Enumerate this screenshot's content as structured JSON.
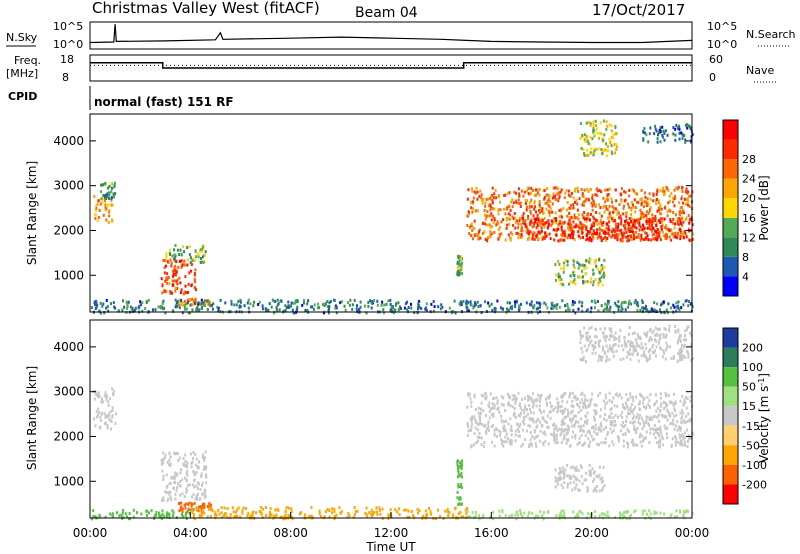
{
  "header": {
    "title": "Christmas Valley West (fitACF)",
    "beam": "Beam 04",
    "date": "17/Oct/2017"
  },
  "noise_panel": {
    "left_label": "N.Sky",
    "right_label": "N.Search",
    "left_ticks": [
      "10^5",
      "10^0"
    ],
    "right_ticks": [
      "10^5",
      "10^0"
    ]
  },
  "freq_panel": {
    "left_label_line1": "Freq.",
    "left_label_line2": "[MHz]",
    "right_label": "Nave",
    "left_ticks": [
      "18",
      "8"
    ],
    "right_ticks": [
      "60",
      "0"
    ]
  },
  "cpid_panel": {
    "label": "CPID",
    "text": "normal (fast) 151 RF"
  },
  "chart_data": [
    {
      "type": "line",
      "name": "noise",
      "x_range_hours": [
        0,
        24
      ],
      "series": [
        {
          "name": "N.Sky",
          "points": [
            [
              0,
              1.2
            ],
            [
              0.95,
              1.3
            ],
            [
              1.0,
              4.6
            ],
            [
              1.05,
              1.4
            ],
            [
              3,
              1.5
            ],
            [
              5,
              1.7
            ],
            [
              5.2,
              3.0
            ],
            [
              5.3,
              1.8
            ],
            [
              8,
              2.0
            ],
            [
              10,
              2.2
            ],
            [
              12,
              2.0
            ],
            [
              14,
              1.8
            ],
            [
              15,
              1.6
            ],
            [
              16,
              1.4
            ],
            [
              18,
              1.3
            ],
            [
              20,
              1.2
            ],
            [
              22,
              1.2
            ],
            [
              24,
              1.6
            ]
          ]
        }
      ]
    },
    {
      "type": "line",
      "name": "frequency",
      "x_range_hours": [
        0,
        24
      ],
      "series": [
        {
          "name": "Freq. [MHz]",
          "points": [
            [
              0,
              15
            ],
            [
              2.9,
              15
            ],
            [
              2.9,
              13
            ],
            [
              14.9,
              13
            ],
            [
              14.9,
              15
            ],
            [
              24,
              15
            ]
          ]
        },
        {
          "name": "Nave",
          "points": [
            [
              0,
              12
            ],
            [
              24,
              12
            ]
          ]
        }
      ]
    },
    {
      "type": "heatmap",
      "name": "power",
      "xlabel": "",
      "ylabel": "Slant Range [km]",
      "xlim_hours": [
        0,
        24
      ],
      "ylim": [
        180,
        4600
      ],
      "y_ticks": [
        1000,
        2000,
        3000,
        4000
      ],
      "colorbar": {
        "label": "Power [dB]",
        "ticks": [
          "4",
          "8",
          "12",
          "16",
          "20",
          "24",
          "28"
        ],
        "colors": [
          "#0000ff",
          "#1e58b4",
          "#2e8b57",
          "#55aa55",
          "#ffd700",
          "#ffa500",
          "#ff6600",
          "#ff2a00",
          "#ff0000"
        ]
      },
      "regions": [
        {
          "t0": 0.1,
          "t1": 0.9,
          "r0": 2200,
          "r1": 2800,
          "value": 20
        },
        {
          "t0": 0.4,
          "t1": 1.0,
          "r0": 2700,
          "r1": 3100,
          "value": 10
        },
        {
          "t0": 2.8,
          "t1": 4.2,
          "r0": 600,
          "r1": 1400,
          "value": 26
        },
        {
          "t0": 3.0,
          "t1": 4.6,
          "r0": 1300,
          "r1": 1700,
          "value": 12
        },
        {
          "t0": 3.5,
          "t1": 4.8,
          "r0": 350,
          "r1": 500,
          "value": 22
        },
        {
          "t0": 15.0,
          "t1": 24.0,
          "r0": 1800,
          "r1": 3000,
          "value": 23
        },
        {
          "t0": 17.0,
          "t1": 24.0,
          "r0": 1800,
          "r1": 2300,
          "value": 28
        },
        {
          "t0": 18.5,
          "t1": 20.5,
          "r0": 800,
          "r1": 1400,
          "value": 14
        },
        {
          "t0": 19.5,
          "t1": 21.0,
          "r0": 3700,
          "r1": 4500,
          "value": 16
        },
        {
          "t0": 22.0,
          "t1": 24.0,
          "r0": 4000,
          "r1": 4400,
          "value": 6
        },
        {
          "t0": 14.6,
          "t1": 14.8,
          "r0": 1000,
          "r1": 1500,
          "value": 12
        },
        {
          "t0": 0.0,
          "t1": 24.0,
          "r0": 190,
          "r1": 480,
          "value": 8
        }
      ]
    },
    {
      "type": "heatmap",
      "name": "velocity",
      "xlabel": "Time UT",
      "ylabel": "Slant Range [km]",
      "xlim_hours": [
        0,
        24
      ],
      "x_ticks": [
        "00:00",
        "04:00",
        "08:00",
        "12:00",
        "16:00",
        "20:00",
        "00:00"
      ],
      "ylim": [
        180,
        4600
      ],
      "y_ticks": [
        1000,
        2000,
        3000,
        4000
      ],
      "colorbar": {
        "label": "Velocity [m s^-1]",
        "ticks": [
          "200",
          "100",
          "50",
          "15",
          "-15",
          "-50",
          "-100",
          "-200"
        ],
        "colors": [
          "#1e3ca0",
          "#2e7d5a",
          "#55c040",
          "#a0e080",
          "#c8c8c8",
          "#ffd070",
          "#ffa500",
          "#ff6000",
          "#ff0000"
        ]
      },
      "regions": [
        {
          "t0": 0.1,
          "t1": 1.0,
          "r0": 2200,
          "r1": 3100,
          "value": 0
        },
        {
          "t0": 2.8,
          "t1": 4.6,
          "r0": 600,
          "r1": 1700,
          "value": 0
        },
        {
          "t0": 3.5,
          "t1": 4.8,
          "r0": 350,
          "r1": 550,
          "value": -80
        },
        {
          "t0": 15.0,
          "t1": 24.0,
          "r0": 1800,
          "r1": 3000,
          "value": 0
        },
        {
          "t0": 18.5,
          "t1": 20.5,
          "r0": 800,
          "r1": 1400,
          "value": 0
        },
        {
          "t0": 19.5,
          "t1": 24.0,
          "r0": 3700,
          "r1": 4500,
          "value": 0
        },
        {
          "t0": 4.0,
          "t1": 15.0,
          "r0": 190,
          "r1": 450,
          "value": -40
        },
        {
          "t0": 0.0,
          "t1": 4.0,
          "r0": 190,
          "r1": 400,
          "value": 40
        },
        {
          "t0": 15.0,
          "t1": 24.0,
          "r0": 190,
          "r1": 380,
          "value": 20
        },
        {
          "t0": 14.6,
          "t1": 14.8,
          "r0": 500,
          "r1": 1500,
          "value": 60
        }
      ]
    }
  ]
}
